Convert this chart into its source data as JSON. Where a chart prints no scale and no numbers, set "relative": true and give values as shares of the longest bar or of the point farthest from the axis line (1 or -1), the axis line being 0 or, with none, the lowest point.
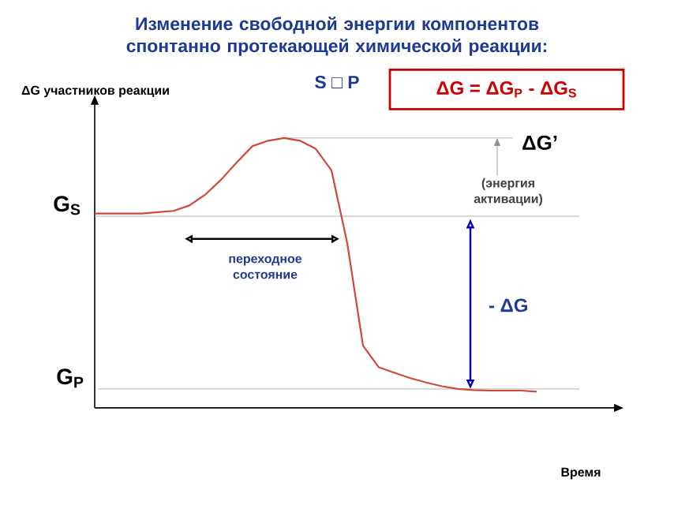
{
  "chart_data": {
    "type": "line",
    "relative": true,
    "title": "Изменение свободной энергии компонентов спонтанно протекающей химической реакции:",
    "subtitle": "S □ P",
    "xlabel": "Время",
    "ylabel": "ΔG участников реакции",
    "categories": [
      null,
      null,
      null,
      null,
      null,
      null,
      null,
      null,
      null,
      null,
      null,
      null,
      null,
      null,
      null,
      null,
      null,
      null,
      null,
      null,
      null,
      null,
      null,
      null,
      null,
      null,
      null,
      null,
      null
    ],
    "series": [
      {
        "color": "#d0483a",
        "values": [
          0.72,
          0.72,
          0.72,
          0.72,
          0.725,
          0.73,
          0.75,
          0.79,
          0.845,
          0.91,
          0.97,
          0.99,
          1.0,
          0.99,
          0.96,
          0.88,
          0.61,
          0.23,
          0.15,
          0.13,
          0.11,
          0.094,
          0.08,
          0.07,
          0.066,
          0.064,
          0.064,
          0.064,
          0.06
        ]
      }
    ],
    "ref_lines": [
      {
        "axis": "y",
        "value": 0.71,
        "label": "G$_{S}$",
        "color": "#a0a0a0"
      },
      {
        "axis": "y",
        "value": 0.07,
        "label": "G$_{P}$",
        "color": "#a0a0a0"
      },
      {
        "axis": "y",
        "value": 1.0,
        "label": "ΔG’",
        "color": "#a0a0a0"
      }
    ],
    "annotations": [
      "ΔG = ΔG$_{P}$ - ΔG$_{S}$",
      "(энергия активации)",
      "переходное состояние",
      "- ΔG"
    ],
    "line_style": "solid",
    "marker": "none"
  }
}
